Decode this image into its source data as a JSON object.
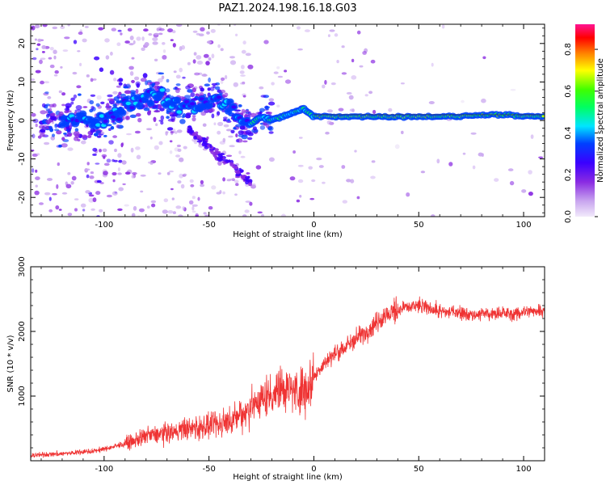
{
  "figure_title": "PAZ1.2024.198.16.18.G03",
  "chart_data": [
    {
      "type": "heatmap",
      "xlabel": "Height of straight line (km)",
      "ylabel": "Frequency (Hz)",
      "xlim": [
        -135,
        110
      ],
      "ylim": [
        -25,
        25
      ],
      "x_ticks": [
        -100,
        -50,
        0,
        50,
        100
      ],
      "y_ticks": [
        -20,
        -10,
        0,
        10,
        20
      ],
      "colorbar": {
        "label": "Normalized spectral amplitude",
        "range": [
          0,
          0.92
        ],
        "ticks": [
          0.0,
          0.2,
          0.4,
          0.6,
          0.8
        ],
        "colors": [
          "#e8dcf5",
          "#c9a6ef",
          "#8a2be2",
          "#3a00ff",
          "#0040ff",
          "#00e5ff",
          "#00ff60",
          "#40ff00",
          "#ffff00",
          "#ff8000",
          "#ff0000",
          "#ff1493"
        ]
      },
      "ridge": [
        [
          -120,
          0
        ],
        [
          -110,
          0
        ],
        [
          -100,
          0
        ],
        [
          -95,
          1
        ],
        [
          -90,
          4
        ],
        [
          -85,
          5
        ],
        [
          -80,
          6
        ],
        [
          -75,
          6
        ],
        [
          -70,
          5
        ],
        [
          -65,
          4
        ],
        [
          -60,
          4
        ],
        [
          -55,
          4
        ],
        [
          -50,
          5
        ],
        [
          -45,
          6
        ],
        [
          -40,
          3
        ],
        [
          -35,
          0
        ],
        [
          -30,
          -1
        ],
        [
          -25,
          1
        ],
        [
          -20,
          0
        ],
        [
          -15,
          1
        ],
        [
          -10,
          2
        ],
        [
          -5,
          3
        ],
        [
          0,
          1
        ],
        [
          10,
          1
        ],
        [
          20,
          1
        ],
        [
          30,
          1
        ],
        [
          40,
          1
        ],
        [
          50,
          1
        ],
        [
          60,
          1
        ],
        [
          70,
          1
        ],
        [
          80,
          1.5
        ],
        [
          90,
          1.5
        ],
        [
          100,
          1
        ],
        [
          110,
          1
        ]
      ]
    },
    {
      "type": "line",
      "xlabel": "Height of straight line (km)",
      "ylabel": "SNR (10 * v/v)",
      "xlim": [
        -135,
        110
      ],
      "ylim": [
        0,
        3000
      ],
      "x_ticks": [
        -100,
        -50,
        0,
        50,
        100
      ],
      "y_ticks": [
        1000,
        2000,
        3000
      ],
      "color": "#ef3333",
      "x": [
        -135,
        -125,
        -115,
        -105,
        -100,
        -95,
        -90,
        -85,
        -80,
        -75,
        -70,
        -65,
        -60,
        -55,
        -50,
        -45,
        -40,
        -35,
        -30,
        -25,
        -20,
        -15,
        -10,
        -5,
        0,
        5,
        10,
        15,
        20,
        25,
        30,
        35,
        40,
        45,
        50,
        55,
        60,
        65,
        70,
        75,
        80,
        85,
        90,
        95,
        100,
        105,
        110
      ],
      "y": [
        80,
        100,
        120,
        150,
        180,
        220,
        260,
        320,
        380,
        400,
        430,
        460,
        500,
        500,
        520,
        560,
        620,
        700,
        850,
        950,
        1050,
        1150,
        1100,
        1100,
        1300,
        1500,
        1650,
        1750,
        1900,
        2000,
        2150,
        2250,
        2350,
        2380,
        2400,
        2350,
        2300,
        2300,
        2300,
        2250,
        2280,
        2250,
        2300,
        2250,
        2300,
        2320,
        2350
      ]
    }
  ]
}
